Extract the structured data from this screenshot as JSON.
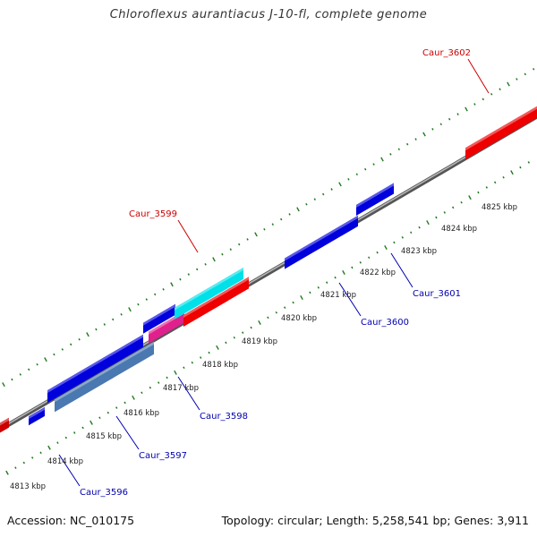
{
  "title": "Chloroflexus aurantiacus J-10-fl, complete genome",
  "footer": {
    "accession": "Accession: NC_010175",
    "topology": "Topology: circular; Length: 5,258,541 bp; Genes: 3,911"
  },
  "colors": {
    "backbone": "#8a8a8a",
    "ticks": "#1e7a1e",
    "label_forward": "#cc0000",
    "label_reverse": "#0000b0"
  },
  "genome_ticks": [
    {
      "kbp": 4813,
      "label": "4813 kbp"
    },
    {
      "kbp": 4814,
      "label": "4814 kbp"
    },
    {
      "kbp": 4815,
      "label": "4815 kbp"
    },
    {
      "kbp": 4816,
      "label": "4816 kbp"
    },
    {
      "kbp": 4817,
      "label": "4817 kbp"
    },
    {
      "kbp": 4818,
      "label": "4818 kbp"
    },
    {
      "kbp": 4819,
      "label": "4819 kbp"
    },
    {
      "kbp": 4820,
      "label": "4820 kbp"
    },
    {
      "kbp": 4821,
      "label": "4821 kbp"
    },
    {
      "kbp": 4822,
      "label": "4822 kbp"
    },
    {
      "kbp": 4823,
      "label": "4823 kbp"
    },
    {
      "kbp": 4824,
      "label": "4824 kbp"
    },
    {
      "kbp": 4825,
      "label": "4825 kbp"
    }
  ],
  "features": [
    {
      "strand": "reverse",
      "color": "#cc0000"
    },
    {
      "strand": "reverse",
      "color": "#0000dd"
    },
    {
      "strand": "reverse",
      "color": "#0000dd"
    },
    {
      "strand": "reverse",
      "color": "#4a78b0"
    },
    {
      "strand": "reverse",
      "color": "#0000dd"
    },
    {
      "strand": "reverse",
      "color": "#e0208c"
    },
    {
      "strand": "forward",
      "color": "#00e0e8"
    },
    {
      "strand": "forward",
      "color": "#ee0000"
    },
    {
      "strand": "reverse",
      "color": "#0000dd"
    },
    {
      "strand": "reverse",
      "color": "#0000dd"
    },
    {
      "strand": "forward",
      "color": "#ee0000"
    }
  ],
  "gene_labels": [
    {
      "text": "Caur_3599",
      "strand": "forward"
    },
    {
      "text": "Caur_3602",
      "strand": "forward"
    },
    {
      "text": "Caur_3601",
      "strand": "reverse"
    },
    {
      "text": "Caur_3600",
      "strand": "reverse"
    },
    {
      "text": "Caur_3598",
      "strand": "reverse"
    },
    {
      "text": "Caur_3597",
      "strand": "reverse"
    },
    {
      "text": "Caur_3596",
      "strand": "reverse"
    }
  ]
}
